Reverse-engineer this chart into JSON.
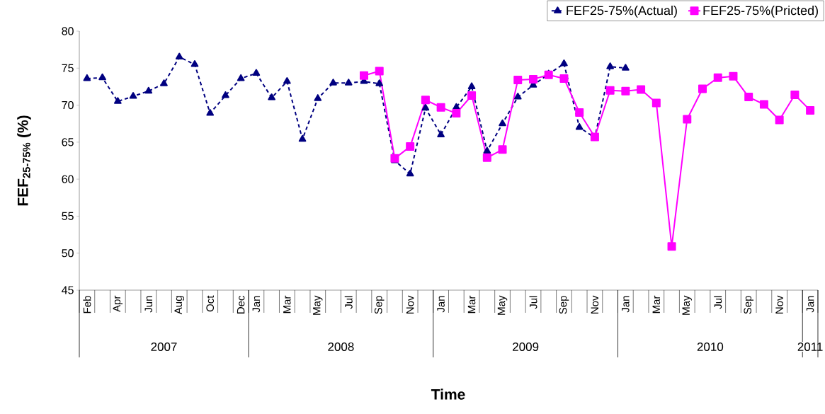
{
  "chart_data": {
    "type": "line",
    "xlabel": "Time",
    "ylabel": "**FEF$_{25-75%}$ (%)**",
    "categories": [
      "Feb",
      null,
      "Apr",
      null,
      "Jun",
      null,
      "Aug",
      null,
      "Oct",
      null,
      "Dec",
      "Jan",
      null,
      "Mar",
      null,
      "May",
      null,
      "Jul",
      null,
      "Sep",
      null,
      "Nov",
      null,
      "Jan",
      null,
      "Mar",
      null,
      "May",
      null,
      "Jul",
      null,
      "Sep",
      null,
      "Nov",
      null,
      "Jan",
      null,
      "Mar",
      null,
      "May",
      null,
      "Jul",
      null,
      "Sep",
      null,
      "Nov",
      null,
      "Jan"
    ],
    "series": [
      {
        "name": "FEF25-75%(Actual)",
        "color": "#000080",
        "marker": "triangle",
        "line_style": "dashed",
        "values": [
          73.6,
          73.7,
          70.5,
          71.2,
          71.9,
          72.9,
          76.5,
          75.5,
          68.9,
          71.3,
          73.6,
          74.3,
          71.0,
          73.2,
          65.4,
          70.9,
          73.0,
          73.0,
          73.2,
          72.9,
          62.5,
          60.7,
          69.6,
          66.0,
          69.7,
          72.5,
          63.8,
          67.5,
          71.1,
          72.7,
          74.2,
          75.6,
          67.0,
          65.6,
          75.2,
          75.0,
          null,
          null,
          null,
          null,
          null,
          null,
          null,
          null,
          null,
          null,
          null,
          null
        ]
      },
      {
        "name": "FEF25-75%(Pricted)",
        "color": "#ff00ff",
        "marker": "square",
        "line_style": "solid",
        "values": [
          null,
          null,
          null,
          null,
          null,
          null,
          null,
          null,
          null,
          null,
          null,
          null,
          null,
          null,
          null,
          null,
          null,
          null,
          74.0,
          74.6,
          62.8,
          64.4,
          70.7,
          69.7,
          68.9,
          71.3,
          62.9,
          64.0,
          73.4,
          73.5,
          74.1,
          73.6,
          69.0,
          65.7,
          72.0,
          71.9,
          72.1,
          70.3,
          50.9,
          68.1,
          72.2,
          73.7,
          73.9,
          71.1,
          70.1,
          68.0,
          71.4,
          69.3
        ]
      }
    ],
    "ylim": [
      45,
      80
    ],
    "yticks": [
      45,
      50,
      55,
      60,
      65,
      70,
      75,
      80
    ],
    "legend": "top right",
    "annotations": [
      "2007",
      "2008",
      "2009",
      "2010",
      "2011"
    ]
  }
}
